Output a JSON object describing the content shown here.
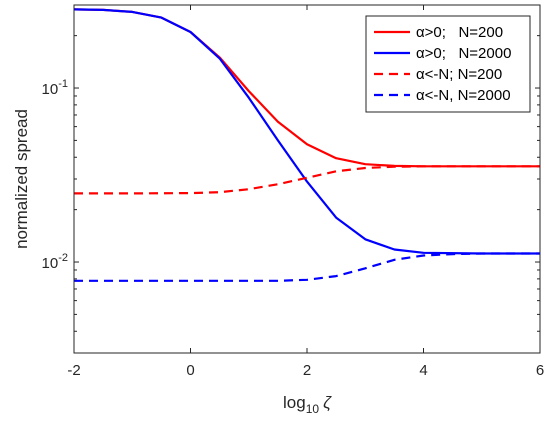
{
  "chart_data": {
    "type": "line",
    "xlabel": {
      "base": "log",
      "sub": "10",
      "symbol": "ζ"
    },
    "ylabel": "normalized spread",
    "xlim": [
      -2,
      6
    ],
    "ylim": [
      0.003,
      0.3
    ],
    "yscale": "log",
    "xticks": [
      -2,
      0,
      2,
      4,
      6
    ],
    "xtick_labels": [
      "-2",
      "0",
      "2",
      "4",
      "6"
    ],
    "yticks": [
      0.1,
      0.01
    ],
    "ytick_labels": [
      {
        "base": "10",
        "exp": "-1"
      },
      {
        "base": "10",
        "exp": "-2"
      }
    ],
    "grid": false,
    "legend_position": "top-right",
    "series": [
      {
        "name": "α>0;   N=200",
        "color": "#ff0000",
        "dash": "solid",
        "x": [
          -2,
          -1.5,
          -1,
          -0.5,
          0,
          0.5,
          1,
          1.5,
          2,
          2.5,
          3,
          3.5,
          4,
          5,
          6
        ],
        "y": [
          0.283,
          0.281,
          0.274,
          0.254,
          0.21,
          0.15,
          0.096,
          0.064,
          0.0475,
          0.0395,
          0.0365,
          0.0357,
          0.0355,
          0.0355,
          0.0355
        ]
      },
      {
        "name": "α>0;   N=2000",
        "color": "#0000ff",
        "dash": "solid",
        "x": [
          -2,
          -1.5,
          -1,
          -0.5,
          0,
          0.5,
          1,
          1.5,
          2,
          2.5,
          3,
          3.5,
          4,
          5,
          6
        ],
        "y": [
          0.283,
          0.281,
          0.274,
          0.254,
          0.21,
          0.148,
          0.088,
          0.05,
          0.029,
          0.018,
          0.0135,
          0.0118,
          0.0113,
          0.0112,
          0.0112
        ]
      },
      {
        "name": "α<-N; N=200",
        "color": "#ff0000",
        "dash": "dashed",
        "x": [
          -2,
          -1,
          0,
          0.5,
          1,
          1.5,
          2,
          2.5,
          3,
          3.5,
          4,
          5,
          6
        ],
        "y": [
          0.0248,
          0.0248,
          0.0249,
          0.0252,
          0.0262,
          0.028,
          0.0305,
          0.0332,
          0.0347,
          0.0353,
          0.0355,
          0.0355,
          0.0355
        ]
      },
      {
        "name": "α<-N, N=2000",
        "color": "#0000ff",
        "dash": "dashed",
        "x": [
          -2,
          -1,
          0,
          1,
          1.5,
          2,
          2.5,
          3,
          3.5,
          4,
          4.5,
          5,
          6
        ],
        "y": [
          0.0078,
          0.0078,
          0.0078,
          0.0078,
          0.0078,
          0.0079,
          0.0083,
          0.0092,
          0.0103,
          0.0109,
          0.0111,
          0.0112,
          0.0112
        ]
      }
    ]
  }
}
